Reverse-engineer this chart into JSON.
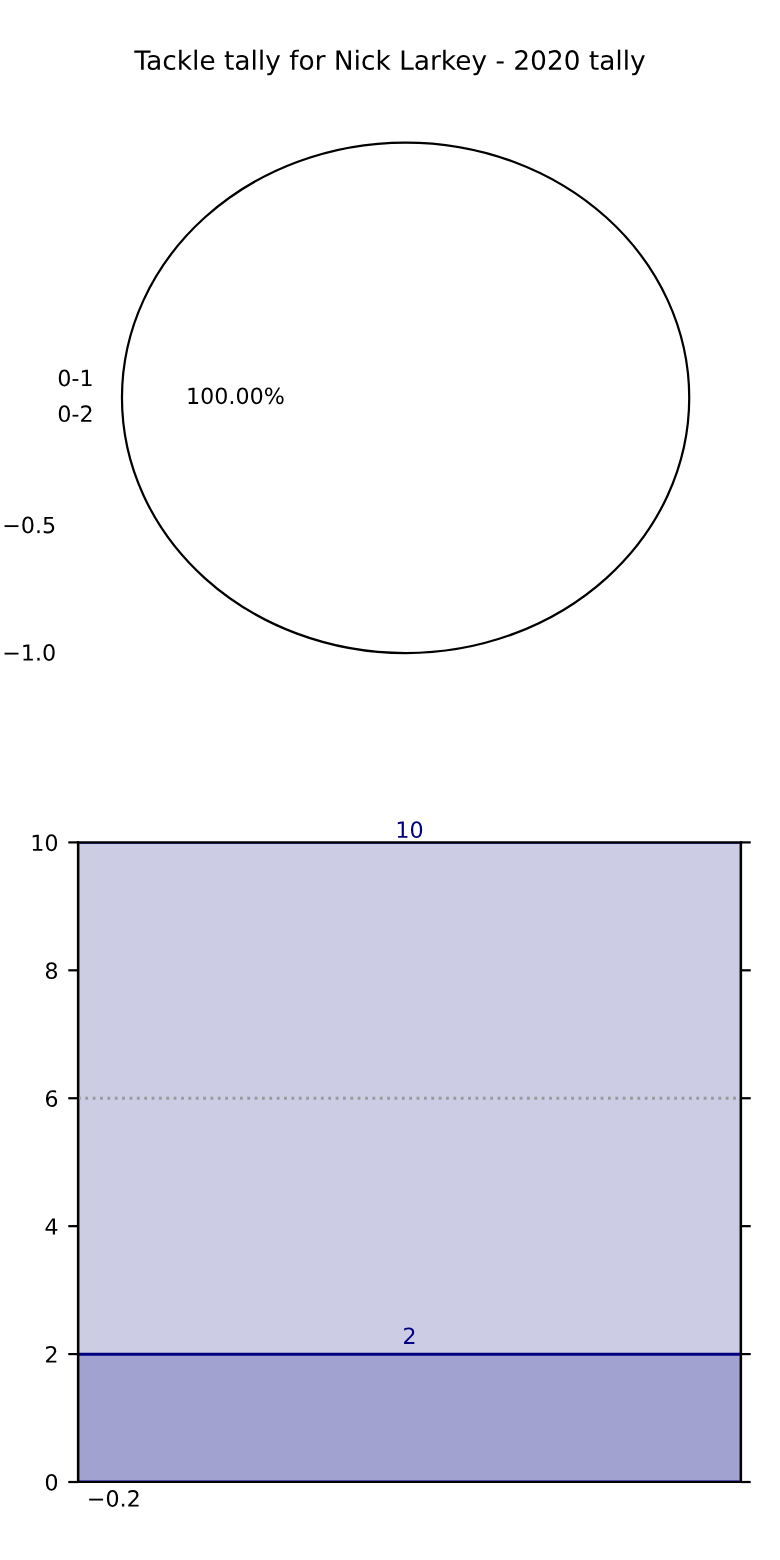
{
  "chart_data": [
    {
      "type": "pie",
      "title": "Tackle tally for Nick Larkey - 2020 tally",
      "categories": [
        "0-1",
        "0-2"
      ],
      "values": [
        0,
        100
      ],
      "colors": [
        "#ffffff",
        "#ffffff"
      ],
      "value_labels": [
        null,
        "100.00%"
      ],
      "annotations": [
        "−0.5",
        "−1.0"
      ]
    },
    {
      "type": "bar",
      "stacked": true,
      "categories": [
        null
      ],
      "series": [
        {
          "color": "#a2a2d0",
          "values": [
            2
          ],
          "value_labels": [
            "2"
          ]
        },
        {
          "color": "#ccccE4",
          "values": [
            8
          ],
          "value_labels": [
            null
          ]
        }
      ],
      "totals": [
        "10"
      ],
      "ylim": [
        0,
        10
      ],
      "yticks": [
        0,
        2,
        4,
        6,
        8,
        10
      ],
      "ref_lines": [
        {
          "axis": "y",
          "value": 6,
          "color": "#999999",
          "line_style": "dotted"
        }
      ],
      "annotations": [
        "−0.2"
      ]
    }
  ]
}
